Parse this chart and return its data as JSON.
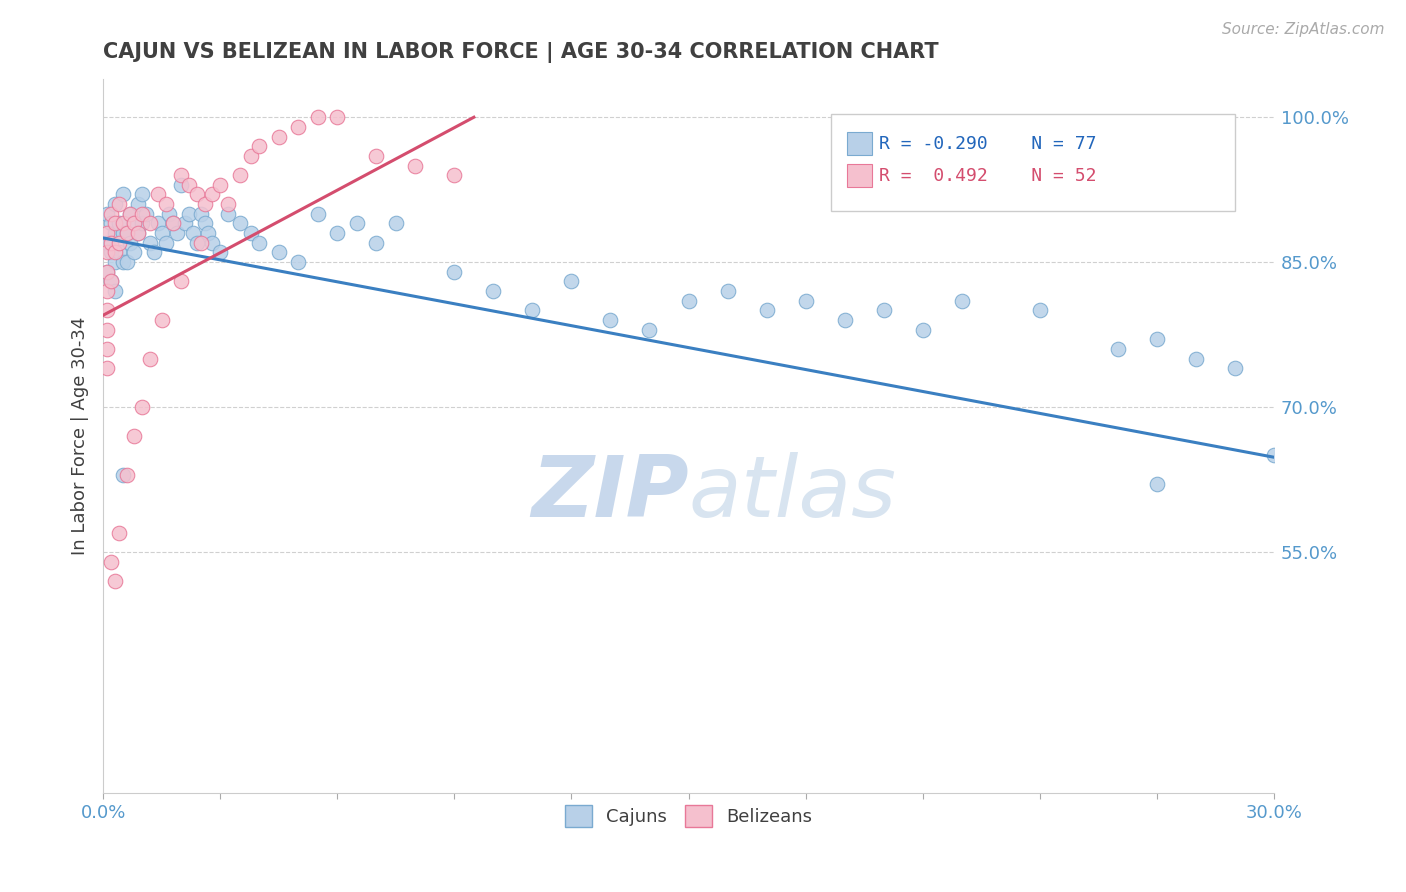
{
  "title": "CAJUN VS BELIZEAN IN LABOR FORCE | AGE 30-34 CORRELATION CHART",
  "source_text": "Source: ZipAtlas.com",
  "ylabel": "In Labor Force | Age 30-34",
  "xlim": [
    0.0,
    0.3
  ],
  "ylim": [
    0.3,
    1.04
  ],
  "cajun_R": -0.29,
  "cajun_N": 77,
  "belizean_R": 0.492,
  "belizean_N": 52,
  "cajun_color": "#b8d0e8",
  "cajun_edge_color": "#7aaad0",
  "belizean_color": "#f5c0ce",
  "belizean_edge_color": "#e87898",
  "trendline_cajun_color": "#3a7fc1",
  "trendline_belizean_color": "#d44d6e",
  "watermark_color": "#cddcec",
  "grid_color": "#d0d0d0",
  "title_color": "#404040",
  "axis_label_color": "#5599cc",
  "legend_r_cajun_color": "#2266bb",
  "legend_r_belizean_color": "#d44d6e",
  "cajun_x": [
    0.001,
    0.001,
    0.001,
    0.002,
    0.002,
    0.002,
    0.003,
    0.003,
    0.003,
    0.003,
    0.004,
    0.004,
    0.005,
    0.005,
    0.005,
    0.006,
    0.006,
    0.007,
    0.007,
    0.008,
    0.008,
    0.009,
    0.009,
    0.01,
    0.01,
    0.011,
    0.012,
    0.013,
    0.014,
    0.015,
    0.016,
    0.017,
    0.018,
    0.019,
    0.02,
    0.021,
    0.022,
    0.023,
    0.024,
    0.025,
    0.026,
    0.027,
    0.028,
    0.03,
    0.032,
    0.035,
    0.038,
    0.04,
    0.045,
    0.05,
    0.055,
    0.06,
    0.065,
    0.07,
    0.075,
    0.09,
    0.1,
    0.11,
    0.12,
    0.13,
    0.14,
    0.15,
    0.16,
    0.17,
    0.18,
    0.19,
    0.2,
    0.21,
    0.22,
    0.24,
    0.26,
    0.27,
    0.28,
    0.29,
    0.3,
    0.27,
    0.005
  ],
  "cajun_y": [
    0.9,
    0.87,
    0.84,
    0.89,
    0.86,
    0.83,
    0.91,
    0.88,
    0.85,
    0.82,
    0.89,
    0.86,
    0.92,
    0.88,
    0.85,
    0.88,
    0.85,
    0.9,
    0.87,
    0.89,
    0.86,
    0.91,
    0.88,
    0.92,
    0.89,
    0.9,
    0.87,
    0.86,
    0.89,
    0.88,
    0.87,
    0.9,
    0.89,
    0.88,
    0.93,
    0.89,
    0.9,
    0.88,
    0.87,
    0.9,
    0.89,
    0.88,
    0.87,
    0.86,
    0.9,
    0.89,
    0.88,
    0.87,
    0.86,
    0.85,
    0.9,
    0.88,
    0.89,
    0.87,
    0.89,
    0.84,
    0.82,
    0.8,
    0.83,
    0.79,
    0.78,
    0.81,
    0.82,
    0.8,
    0.81,
    0.79,
    0.8,
    0.78,
    0.81,
    0.8,
    0.76,
    0.77,
    0.75,
    0.74,
    0.65,
    0.62,
    0.63
  ],
  "belizean_x": [
    0.001,
    0.001,
    0.001,
    0.001,
    0.001,
    0.001,
    0.001,
    0.001,
    0.002,
    0.002,
    0.002,
    0.003,
    0.003,
    0.004,
    0.004,
    0.005,
    0.006,
    0.007,
    0.008,
    0.009,
    0.01,
    0.012,
    0.014,
    0.016,
    0.018,
    0.02,
    0.022,
    0.024,
    0.026,
    0.028,
    0.03,
    0.032,
    0.035,
    0.038,
    0.04,
    0.045,
    0.05,
    0.055,
    0.06,
    0.07,
    0.08,
    0.09,
    0.002,
    0.003,
    0.004,
    0.006,
    0.008,
    0.01,
    0.012,
    0.015,
    0.02,
    0.025
  ],
  "belizean_y": [
    0.88,
    0.86,
    0.84,
    0.82,
    0.8,
    0.78,
    0.76,
    0.74,
    0.9,
    0.87,
    0.83,
    0.89,
    0.86,
    0.91,
    0.87,
    0.89,
    0.88,
    0.9,
    0.89,
    0.88,
    0.9,
    0.89,
    0.92,
    0.91,
    0.89,
    0.94,
    0.93,
    0.92,
    0.91,
    0.92,
    0.93,
    0.91,
    0.94,
    0.96,
    0.97,
    0.98,
    0.99,
    1.0,
    1.0,
    0.96,
    0.95,
    0.94,
    0.54,
    0.52,
    0.57,
    0.63,
    0.67,
    0.7,
    0.75,
    0.79,
    0.83,
    0.87
  ],
  "cajun_trend_x": [
    0.0,
    0.3
  ],
  "cajun_trend_y": [
    0.875,
    0.648
  ],
  "belizean_trend_x": [
    0.0,
    0.095
  ],
  "belizean_trend_y": [
    0.795,
    1.0
  ],
  "xtick_positions": [
    0.0,
    0.03,
    0.06,
    0.09,
    0.12,
    0.15,
    0.18,
    0.21,
    0.24,
    0.27,
    0.3
  ],
  "xtick_labels": [
    "0.0%",
    "",
    "",
    "",
    "",
    "",
    "",
    "",
    "",
    "",
    "30.0%"
  ],
  "ytick_positions": [
    0.55,
    0.7,
    0.85,
    1.0
  ],
  "ytick_labels": [
    "55.0%",
    "70.0%",
    "85.0%",
    "100.0%"
  ],
  "ytick_right_positions": [
    0.55,
    0.7,
    0.85,
    1.0
  ],
  "ytick_right_labels": [
    "55.0%",
    "70.0%",
    "85.0%",
    "100.0%"
  ]
}
